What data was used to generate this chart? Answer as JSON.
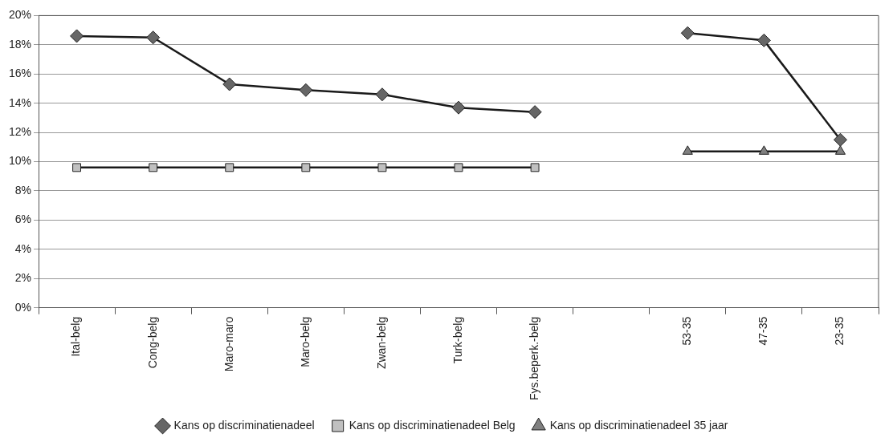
{
  "chart_data": {
    "type": "line",
    "categories": [
      "Ital-belg",
      "Cong-belg",
      "Maro-maro",
      "Maro-belg",
      "Zwan-belg",
      "Turk-belg",
      "Fys.beperk.-belg",
      null,
      "53-35",
      "47-35",
      "23-35"
    ],
    "series": [
      {
        "name": "Kans op discriminatienadeel",
        "color": "#666666",
        "marker": "diamond",
        "values": [
          18.6,
          18.5,
          15.3,
          14.9,
          14.6,
          13.7,
          13.4,
          null,
          18.8,
          18.3,
          11.5
        ]
      },
      {
        "name": "Kans op discriminatienadeel Belg",
        "color": "#c0c0c0",
        "marker": "square",
        "values": [
          9.6,
          9.6,
          9.6,
          9.6,
          9.6,
          9.6,
          9.6,
          null,
          null,
          null,
          null
        ]
      },
      {
        "name": "Kans op discriminatienadeel 35 jaar",
        "color": "#808080",
        "marker": "triangle",
        "values": [
          null,
          null,
          null,
          null,
          null,
          null,
          null,
          null,
          10.7,
          10.7,
          10.7
        ]
      }
    ],
    "ylim": [
      0,
      20
    ],
    "yticks": [
      {
        "value": 0,
        "label": "0%"
      },
      {
        "value": 2,
        "label": "2%"
      },
      {
        "value": 4,
        "label": "4%"
      },
      {
        "value": 6,
        "label": "6%"
      },
      {
        "value": 8,
        "label": "8%"
      },
      {
        "value": 10,
        "label": "10%"
      },
      {
        "value": 12,
        "label": "12%"
      },
      {
        "value": 14,
        "label": "14%"
      },
      {
        "value": 16,
        "label": "16%"
      },
      {
        "value": 18,
        "label": "18%"
      },
      {
        "value": 20,
        "label": "20%"
      }
    ],
    "grid": "y",
    "legend": "bottom",
    "line_style": "solid"
  }
}
